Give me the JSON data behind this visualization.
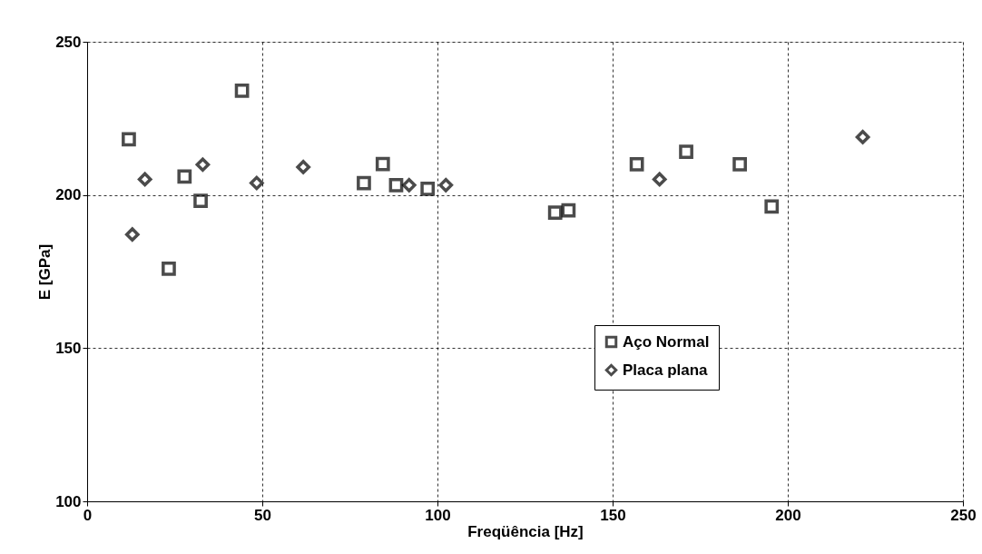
{
  "chart_data": {
    "type": "scatter",
    "xlabel": "Freqüência [Hz]",
    "ylabel": "E [GPa]",
    "xlim": [
      0,
      250
    ],
    "xticks": [
      0,
      50,
      100,
      150,
      200,
      250
    ],
    "ylim": [
      100,
      250
    ],
    "yticks": [
      100,
      150,
      200,
      250
    ],
    "grid": true,
    "legend": "right",
    "series": [
      {
        "name": "Aço Normal",
        "color": "#000000",
        "marker": "square",
        "x": [
          11.9,
          23.3,
          27.8,
          32.4,
          44.2,
          79.0,
          84.4,
          88.2,
          97.2,
          133.6,
          137.4,
          156.9,
          171.0,
          186.3,
          195.4
        ],
        "values": [
          218.2,
          175.9,
          206.0,
          198.1,
          234.0,
          203.9,
          210.1,
          203.2,
          202.0,
          194.2,
          195.0,
          210.0,
          214.1,
          210.0,
          196.2
        ]
      },
      {
        "name": "Placa plana",
        "color": "#000000",
        "marker": "diamond",
        "x": [
          12.9,
          16.5,
          33.0,
          48.4,
          61.7,
          91.9,
          102.4,
          163.4,
          221.4
        ],
        "values": [
          187.1,
          205.1,
          209.9,
          203.9,
          209.1,
          203.2,
          203.2,
          205.1,
          218.9
        ]
      }
    ]
  }
}
